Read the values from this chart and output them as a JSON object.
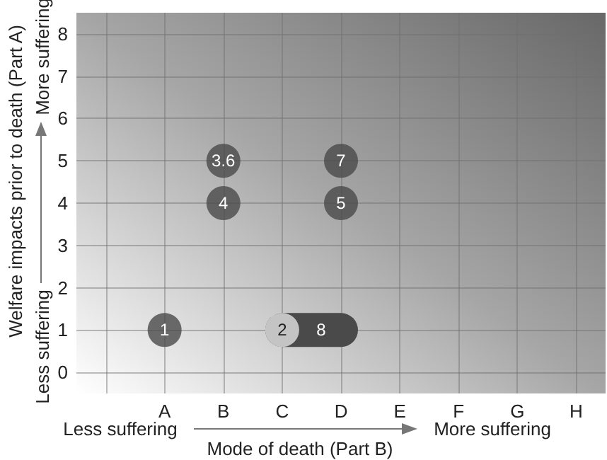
{
  "chart_data": {
    "type": "scatter",
    "xlabel": "Mode of death (Part B)",
    "ylabel": "Welfare impacts prior to death (Part A)",
    "categories": [
      null,
      "A",
      "B",
      "C",
      "D",
      "E",
      "F",
      "G",
      "H"
    ],
    "ylim": [
      -0.5,
      8.5
    ],
    "yticks": [
      0,
      1,
      2,
      3,
      4,
      5,
      6,
      7,
      8
    ],
    "grid": true,
    "marker": "circle",
    "annotations": [
      "Less suffering",
      "More suffering",
      "Less suffering",
      "More suffering",
      {
        "text": "1",
        "x": "A",
        "y": 1
      },
      {
        "text": "3.6",
        "x": "B",
        "y": 5
      },
      {
        "text": "4",
        "x": "B",
        "y": 4
      },
      {
        "text": "7",
        "x": "D",
        "y": 5
      },
      {
        "text": "5",
        "x": "D",
        "y": 4
      },
      {
        "text": "2",
        "x": "C",
        "y": 1
      },
      {
        "text": "8",
        "x": "D",
        "y": 1
      }
    ],
    "series": [
      {
        "type": "line",
        "marker": "none",
        "x": [
          "C",
          "D"
        ],
        "values": [
          1,
          1
        ],
        "color": "#4a4a4a"
      },
      {
        "x": [
          "A",
          "B",
          "B",
          "D",
          "D",
          "C"
        ],
        "values": [
          1,
          5,
          4,
          5,
          4,
          1
        ],
        "colors": [
          "#4a4a4a",
          "#4a4a4a",
          "#4a4a4a",
          "#4a4a4a",
          "#4a4a4a",
          "#e2e2e2"
        ]
      }
    ]
  }
}
